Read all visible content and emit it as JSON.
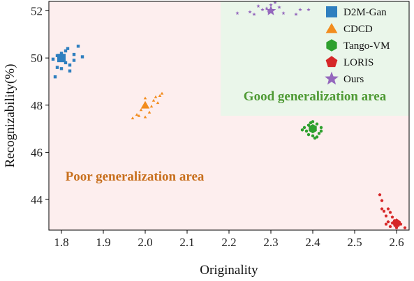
{
  "chart_data": {
    "type": "scatter",
    "title": "",
    "xlabel": "Originality",
    "ylabel": "Recognizability(%)",
    "xlim": [
      1.77,
      2.63
    ],
    "ylim": [
      42.7,
      52.4
    ],
    "xticks": [
      1.8,
      1.9,
      2.0,
      2.1,
      2.2,
      2.3,
      2.4,
      2.5,
      2.6
    ],
    "xtick_labels": [
      "1.8",
      "1.9",
      "2.0",
      "2.1",
      "2.2",
      "2.3",
      "2.4",
      "2.5",
      "2.6"
    ],
    "yticks": [
      44,
      46,
      48,
      50,
      52
    ],
    "ytick_labels": [
      "44",
      "46",
      "48",
      "50",
      "52"
    ],
    "grid": false,
    "legend_position": "top-right",
    "regions": [
      {
        "label": "Poor generalization area",
        "color": "#fdeeee",
        "text_color": "#c8701e",
        "x": [
          1.77,
          2.63
        ],
        "y": [
          42.7,
          52.4
        ],
        "label_at": [
          1.975,
          44.8
        ]
      },
      {
        "label": "Good generalization area",
        "color": "#eaf6ea",
        "text_color": "#4f9a35",
        "x": [
          2.18,
          2.63
        ],
        "y": [
          47.55,
          52.4
        ],
        "label_at": [
          2.405,
          48.2
        ]
      }
    ],
    "series": [
      {
        "name": "D2M-Gan",
        "marker": "square",
        "color": "#2f7fbf",
        "center": [
          1.8,
          50.0
        ],
        "points": [
          [
            1.78,
            49.95
          ],
          [
            1.79,
            50.1
          ],
          [
            1.8,
            50.2
          ],
          [
            1.81,
            50.3
          ],
          [
            1.815,
            50.4
          ],
          [
            1.84,
            50.5
          ],
          [
            1.85,
            50.05
          ],
          [
            1.83,
            49.9
          ],
          [
            1.82,
            49.7
          ],
          [
            1.8,
            49.55
          ],
          [
            1.79,
            49.6
          ],
          [
            1.82,
            49.45
          ],
          [
            1.785,
            49.2
          ],
          [
            1.83,
            50.15
          ],
          [
            1.81,
            49.8
          ]
        ]
      },
      {
        "name": "CDCD",
        "marker": "triangle",
        "color": "#f28c1e",
        "center": [
          2.0,
          48.0
        ],
        "points": [
          [
            1.97,
            47.45
          ],
          [
            1.98,
            47.6
          ],
          [
            1.99,
            47.8
          ],
          [
            2.0,
            48.3
          ],
          [
            2.0,
            47.5
          ],
          [
            2.01,
            47.7
          ],
          [
            2.02,
            48.2
          ],
          [
            2.025,
            48.35
          ],
          [
            2.04,
            48.5
          ],
          [
            2.03,
            48.1
          ],
          [
            2.015,
            47.95
          ],
          [
            1.985,
            47.55
          ],
          [
            2.035,
            48.4
          ]
        ]
      },
      {
        "name": "Tango-VM",
        "marker": "hexagon",
        "color": "#2ea02e",
        "center": [
          2.4,
          47.0
        ],
        "points": [
          [
            2.38,
            47.05
          ],
          [
            2.39,
            47.15
          ],
          [
            2.4,
            47.3
          ],
          [
            2.41,
            47.2
          ],
          [
            2.42,
            47.05
          ],
          [
            2.415,
            46.8
          ],
          [
            2.4,
            46.7
          ],
          [
            2.39,
            46.75
          ],
          [
            2.385,
            46.9
          ],
          [
            2.375,
            46.95
          ],
          [
            2.41,
            46.65
          ],
          [
            2.42,
            46.9
          ],
          [
            2.395,
            47.25
          ],
          [
            2.405,
            46.6
          ]
        ]
      },
      {
        "name": "LORIS",
        "marker": "pentagon",
        "color": "#d62728",
        "center": [
          2.6,
          43.0
        ],
        "points": [
          [
            2.56,
            44.2
          ],
          [
            2.565,
            43.95
          ],
          [
            2.565,
            43.6
          ],
          [
            2.57,
            43.5
          ],
          [
            2.575,
            43.3
          ],
          [
            2.58,
            43.6
          ],
          [
            2.585,
            43.45
          ],
          [
            2.59,
            43.25
          ],
          [
            2.58,
            43.05
          ],
          [
            2.585,
            42.85
          ],
          [
            2.59,
            43.0
          ],
          [
            2.595,
            43.1
          ],
          [
            2.61,
            42.95
          ],
          [
            2.62,
            42.8
          ],
          [
            2.6,
            42.8
          ],
          [
            2.575,
            42.95
          ]
        ]
      },
      {
        "name": "Ours",
        "marker": "star",
        "color": "#9467bd",
        "center": [
          2.3,
          52.0
        ],
        "points": [
          [
            2.22,
            51.9
          ],
          [
            2.25,
            51.95
          ],
          [
            2.27,
            52.2
          ],
          [
            2.28,
            52.05
          ],
          [
            2.29,
            52.1
          ],
          [
            2.3,
            52.25
          ],
          [
            2.31,
            52.35
          ],
          [
            2.32,
            52.15
          ],
          [
            2.33,
            51.9
          ],
          [
            2.36,
            51.85
          ],
          [
            2.37,
            52.05
          ],
          [
            2.39,
            52.05
          ],
          [
            2.26,
            51.85
          ],
          [
            2.295,
            51.95
          ]
        ]
      }
    ]
  }
}
